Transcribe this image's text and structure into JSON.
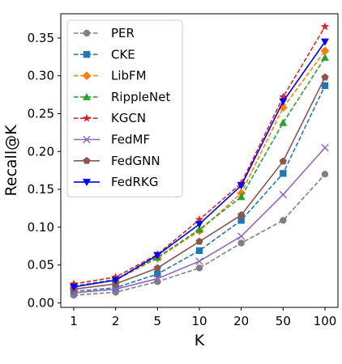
{
  "chart_data": {
    "type": "line",
    "title": "",
    "xlabel": "K",
    "ylabel": "Recall@K",
    "categories": [
      "1",
      "2",
      "5",
      "10",
      "20",
      "50",
      "100"
    ],
    "ylim": [
      -0.006,
      0.382
    ],
    "yticks": [
      "0.00",
      "0.05",
      "0.10",
      "0.15",
      "0.20",
      "0.25",
      "0.30",
      "0.35"
    ],
    "grid": false,
    "legend_position": "top-left",
    "series": [
      {
        "name": "PER",
        "color": "#808080",
        "dash": "dashed",
        "marker": "circle",
        "values": [
          0.01,
          0.014,
          0.028,
          0.046,
          0.079,
          0.109,
          0.17
        ]
      },
      {
        "name": "CKE",
        "color": "#1f77b4",
        "dash": "dashed",
        "marker": "square",
        "values": [
          0.015,
          0.02,
          0.038,
          0.069,
          0.109,
          0.171,
          0.287
        ]
      },
      {
        "name": "LibFM",
        "color": "#ff7f0e",
        "dash": "dashed",
        "marker": "diamond",
        "values": [
          0.021,
          0.03,
          0.059,
          0.095,
          0.145,
          0.258,
          0.333
        ]
      },
      {
        "name": "RippleNet",
        "color": "#2ca02c",
        "dash": "dashed",
        "marker": "triangle-up",
        "values": [
          0.022,
          0.031,
          0.06,
          0.097,
          0.14,
          0.238,
          0.324
        ]
      },
      {
        "name": "KGCN",
        "color": "#d62728",
        "dash": "dashed",
        "marker": "star",
        "values": [
          0.025,
          0.034,
          0.064,
          0.11,
          0.158,
          0.272,
          0.365
        ]
      },
      {
        "name": "FedMF",
        "color": "#9467bd",
        "dash": "solid",
        "marker": "x",
        "values": [
          0.013,
          0.018,
          0.032,
          0.055,
          0.088,
          0.143,
          0.205
        ]
      },
      {
        "name": "FedGNN",
        "color": "#8c564b",
        "dash": "solid",
        "marker": "pentagon",
        "values": [
          0.018,
          0.025,
          0.046,
          0.081,
          0.116,
          0.187,
          0.298
        ]
      },
      {
        "name": "FedRKG",
        "color": "#0000ff",
        "dash": "solid",
        "marker": "triangle-down",
        "values": [
          0.021,
          0.03,
          0.063,
          0.104,
          0.155,
          0.266,
          0.345
        ]
      }
    ]
  }
}
